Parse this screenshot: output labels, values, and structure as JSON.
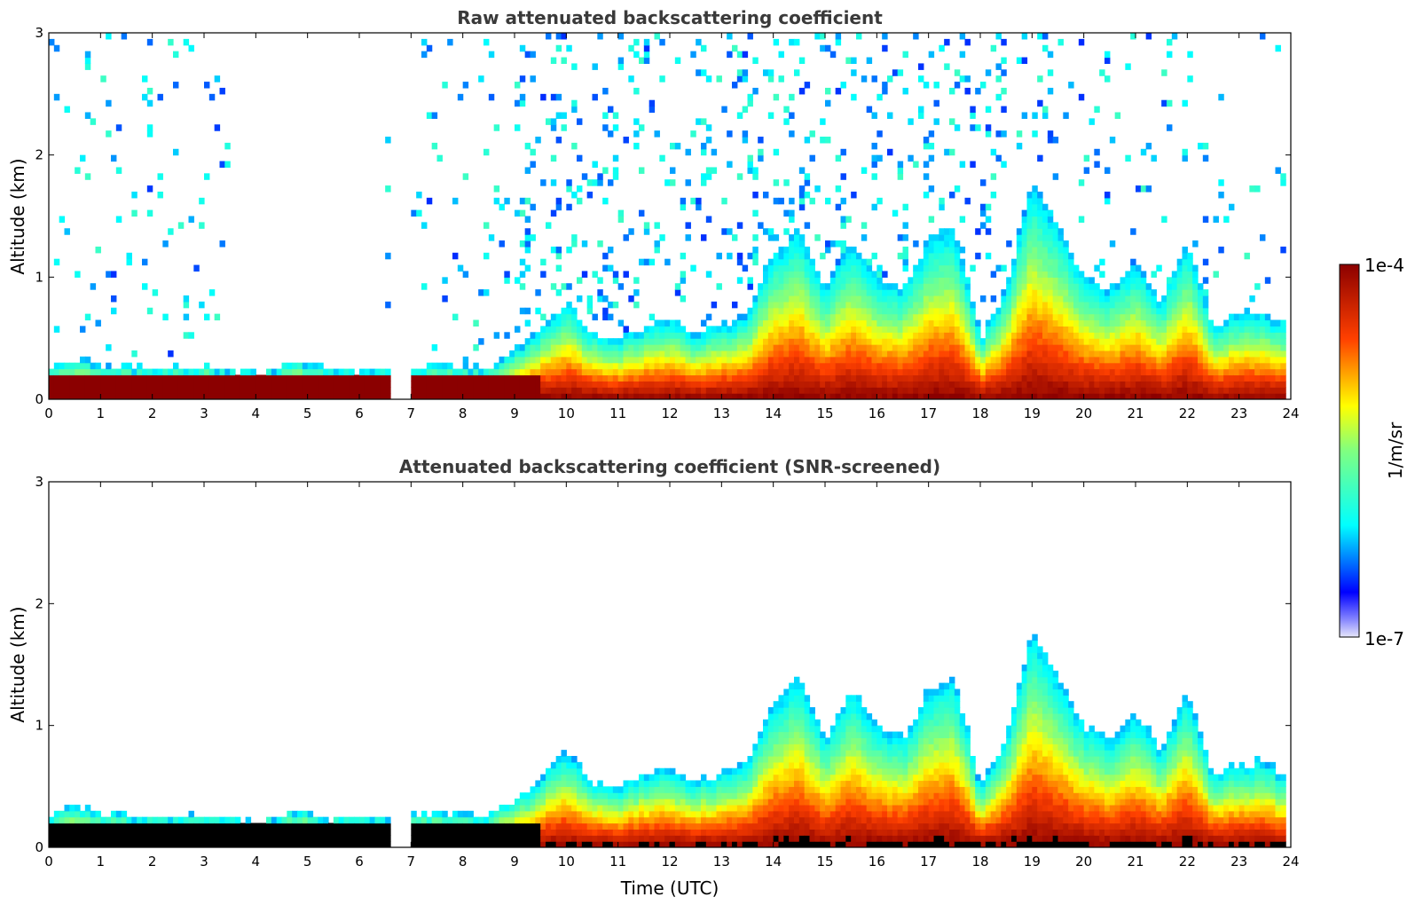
{
  "colors": {
    "colormap": [
      "#e6e6fa",
      "#0000ff",
      "#00ffff",
      "#ffff00",
      "#ff0000",
      "#8b0000"
    ],
    "saturated_screened": "#000000"
  },
  "chart_data": [
    {
      "type": "heatmap",
      "title": "Raw attenuated backscattering coefficient",
      "xlabel": "",
      "ylabel": "Altitude (km)",
      "xlim": [
        0,
        24
      ],
      "ylim": [
        0,
        3
      ],
      "xticks": [
        "0",
        "1",
        "2",
        "3",
        "4",
        "5",
        "6",
        "7",
        "8",
        "9",
        "10",
        "11",
        "12",
        "13",
        "14",
        "15",
        "16",
        "17",
        "18",
        "19",
        "20",
        "21",
        "22",
        "23",
        "24"
      ],
      "yticks": [
        "0",
        "1",
        "2",
        "3"
      ],
      "screened": false
    },
    {
      "type": "heatmap",
      "title": "Attenuated backscattering coefficient (SNR-screened)",
      "xlabel": "Time (UTC)",
      "ylabel": "Altitude (km)",
      "xlim": [
        0,
        24
      ],
      "ylim": [
        0,
        3
      ],
      "xticks": [
        "0",
        "1",
        "2",
        "3",
        "4",
        "5",
        "6",
        "7",
        "8",
        "9",
        "10",
        "11",
        "12",
        "13",
        "14",
        "15",
        "16",
        "17",
        "18",
        "19",
        "20",
        "21",
        "22",
        "23",
        "24"
      ],
      "yticks": [
        "0",
        "1",
        "2",
        "3"
      ],
      "screened": true
    }
  ],
  "colorbar": {
    "label": "1/m/sr",
    "max_label": "1e-4",
    "min_label": "1e-7",
    "scale": "log",
    "range": [
      1e-07,
      0.0001
    ]
  },
  "profile": {
    "hours": [
      0,
      0.5,
      1,
      2,
      3,
      4,
      4.8,
      5.5,
      6.5,
      7.5,
      8.5,
      9.2,
      10,
      10.5,
      11,
      11.5,
      12,
      12.5,
      13,
      13.5,
      14,
      14.5,
      15,
      15.5,
      16,
      16.5,
      17,
      17.5,
      18,
      18.5,
      19,
      19.5,
      20,
      20.5,
      21,
      21.5,
      22,
      22.5,
      23,
      23.5,
      23.8
    ],
    "top_km": [
      0.25,
      0.33,
      0.28,
      0.25,
      0.27,
      0.22,
      0.3,
      0.24,
      0.25,
      0.28,
      0.25,
      0.45,
      0.8,
      0.55,
      0.5,
      0.6,
      0.65,
      0.55,
      0.6,
      0.7,
      1.2,
      1.4,
      0.9,
      1.3,
      1.0,
      0.9,
      1.3,
      1.4,
      0.5,
      0.9,
      1.8,
      1.4,
      1.0,
      0.9,
      1.1,
      0.8,
      1.3,
      0.6,
      0.7,
      0.7,
      0.6
    ]
  }
}
